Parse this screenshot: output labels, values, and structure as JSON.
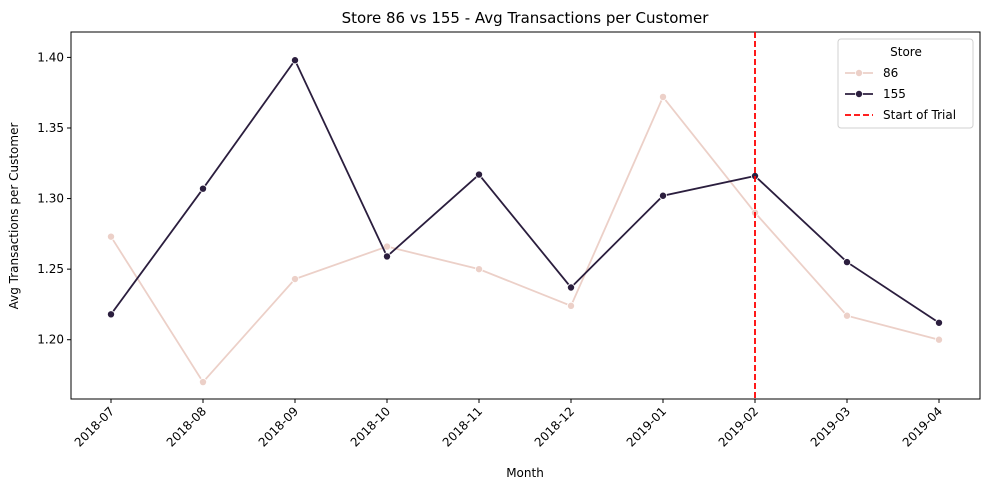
{
  "chart_data": {
    "type": "line",
    "title": "Store 86 vs 155 - Avg Transactions per Customer",
    "xlabel": "Month",
    "ylabel": "Avg Transactions per Customer",
    "categories": [
      "2018-07",
      "2018-08",
      "2018-09",
      "2018-10",
      "2018-11",
      "2018-12",
      "2019-01",
      "2019-02",
      "2019-03",
      "2019-04"
    ],
    "ylim": [
      1.158,
      1.418
    ],
    "yticks": [
      1.2,
      1.25,
      1.3,
      1.35,
      1.4
    ],
    "ytick_labels": [
      "1.20",
      "1.25",
      "1.30",
      "1.35",
      "1.40"
    ],
    "series": [
      {
        "name": "86",
        "color": "#ecd0c8",
        "values": [
          1.273,
          1.17,
          1.243,
          1.266,
          1.25,
          1.224,
          1.372,
          1.29,
          1.217,
          1.2
        ]
      },
      {
        "name": "155",
        "color": "#2b1e3e",
        "values": [
          1.218,
          1.307,
          1.398,
          1.259,
          1.317,
          1.237,
          1.302,
          1.316,
          1.255,
          1.212
        ]
      }
    ],
    "vline": {
      "label": "Start of Trial",
      "x": "2019-02",
      "color": "#ff0000",
      "style": "dashed"
    },
    "legend": {
      "title": "Store",
      "placement": "top-right"
    },
    "grid": false
  }
}
